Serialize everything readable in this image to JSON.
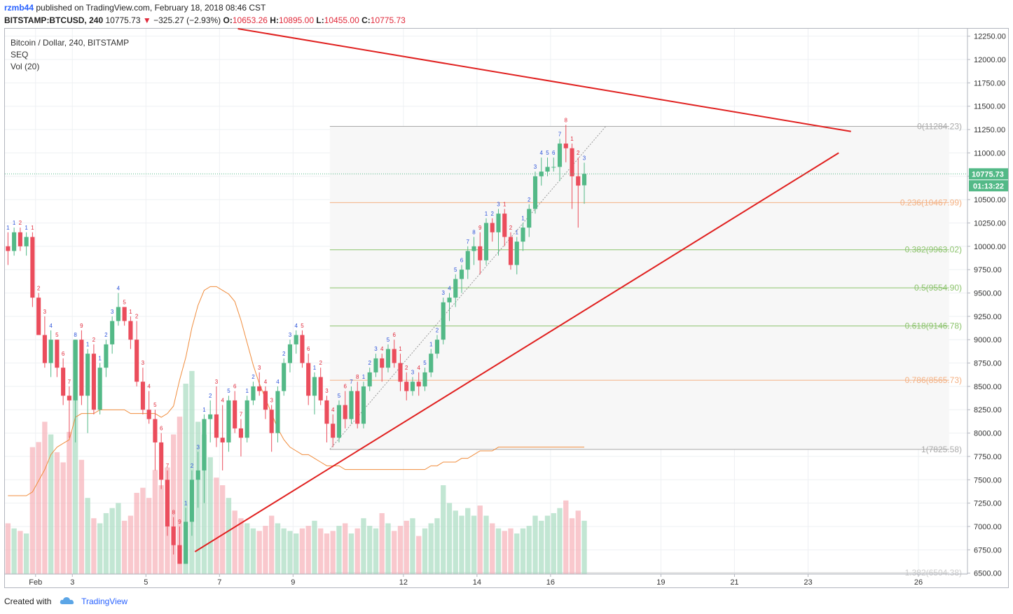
{
  "header": {
    "user": "rzmb44",
    "published": "published on TradingView.com, February 18, 2018 08:46 CST"
  },
  "symbol_line": {
    "symbol": "BITSTAMP:BTCUSD, 240",
    "last": "10775.73",
    "arrow": "▼",
    "change": "−325.27 (−2.93%)",
    "o_label": "O:",
    "o": "10653.26",
    "h_label": "H:",
    "h": "10895.00",
    "l_label": "L:",
    "l": "10455.00",
    "c_label": "C:",
    "c": "10775.73"
  },
  "legend": {
    "title": "Bitcoin / Dollar, 240, BITSTAMP",
    "seq": "SEQ",
    "vol": "Vol (20)"
  },
  "price_badge": {
    "price": "10775.73",
    "timer": "01:13:22",
    "color": "#53b987"
  },
  "footer": {
    "created": "Created with",
    "brand": "TradingView"
  },
  "colors": {
    "up": "#53b987",
    "down": "#eb4d5c",
    "trend": "#e0201f",
    "vol_ma": "#f08c3c"
  },
  "chart_data": {
    "type": "candlestick",
    "interval": "240",
    "y_axis": {
      "range": [
        6500,
        12300
      ],
      "ticks": [
        12250,
        12000,
        11750,
        11500,
        11250,
        11000,
        10750,
        10500,
        10250,
        10000,
        9750,
        9500,
        9250,
        9000,
        8750,
        8500,
        8250,
        8000,
        7750,
        7500,
        7250,
        7000,
        6750,
        6500
      ],
      "tick_labels": [
        "12250.00",
        "12000.00",
        "11750.00",
        "11500.00",
        "11250.00",
        "11000.00",
        "10750.00",
        "10500.00",
        "10250.00",
        "10000.00",
        "9750.00",
        "9500.00",
        "9250.00",
        "9000.00",
        "8750.00",
        "8500.00",
        "8250.00",
        "8000.00",
        "7750.00",
        "7500.00",
        "7250.00",
        "7000.00",
        "6750.00",
        "6500.00"
      ]
    },
    "x_axis": {
      "start": "2018-02-01T04:00",
      "end": "2018-02-27T08:00",
      "ticks": [
        {
          "t": "2018-02-02T00:00",
          "label": "Feb"
        },
        {
          "t": "2018-02-03T00:00",
          "label": "3"
        },
        {
          "t": "2018-02-05T00:00",
          "label": "5"
        },
        {
          "t": "2018-02-07T00:00",
          "label": "7"
        },
        {
          "t": "2018-02-09T00:00",
          "label": "9"
        },
        {
          "t": "2018-02-12T00:00",
          "label": "12"
        },
        {
          "t": "2018-02-14T00:00",
          "label": "14"
        },
        {
          "t": "2018-02-16T00:00",
          "label": "16"
        },
        {
          "t": "2018-02-19T00:00",
          "label": "19"
        },
        {
          "t": "2018-02-21T00:00",
          "label": "21"
        },
        {
          "t": "2018-02-23T00:00",
          "label": "23"
        },
        {
          "t": "2018-02-26T00:00",
          "label": "26"
        }
      ]
    },
    "volume_axis": {
      "range": [
        0,
        3000
      ]
    },
    "candles": [
      [
        10000,
        10150,
        9800,
        9950,
        2,
        "1",
        "g"
      ],
      [
        9950,
        10200,
        9900,
        10150,
        1.8,
        "1",
        "g"
      ],
      [
        10150,
        10200,
        9950,
        10000,
        1.7,
        "2",
        "r"
      ],
      [
        10000,
        10150,
        9900,
        10100,
        1.6,
        "1",
        "g"
      ],
      [
        10100,
        10150,
        9350,
        9450,
        5,
        "1",
        "r"
      ],
      [
        9450,
        9500,
        9050,
        9050,
        5.2,
        "2",
        "r"
      ],
      [
        9050,
        9250,
        8700,
        8750,
        6,
        "3",
        "r"
      ],
      [
        8750,
        9100,
        8600,
        9000,
        5.5,
        "4",
        "g"
      ],
      [
        9000,
        9000,
        8600,
        8700,
        4.8,
        "5",
        "r"
      ],
      [
        8700,
        8800,
        8300,
        8400,
        4.4,
        "6",
        "r"
      ],
      [
        8400,
        8500,
        7950,
        8350,
        5.6,
        "7",
        "r"
      ],
      [
        8350,
        9000,
        7900,
        9000,
        9.2,
        "8",
        "g"
      ],
      [
        9000,
        9100,
        8300,
        8400,
        4.5,
        "9",
        "r"
      ],
      [
        8400,
        8900,
        8000,
        8850,
        3,
        "1",
        "g"
      ],
      [
        8850,
        8950,
        8200,
        8250,
        2.2,
        "2",
        "r"
      ],
      [
        8250,
        8750,
        8200,
        8700,
        2,
        "1",
        "g"
      ],
      [
        8700,
        9000,
        8600,
        8950,
        2.4,
        "2",
        "g"
      ],
      [
        8950,
        9250,
        8850,
        9200,
        2.6,
        "3",
        "g"
      ],
      [
        9200,
        9500,
        9150,
        9350,
        2.8,
        "4",
        "g"
      ],
      [
        9350,
        9350,
        9150,
        9200,
        2.1,
        "5",
        "r"
      ],
      [
        9200,
        9250,
        8900,
        9000,
        2.3,
        "1",
        "r"
      ],
      [
        9000,
        9200,
        8500,
        8550,
        3.2,
        "2",
        "r"
      ],
      [
        8550,
        8700,
        8200,
        8250,
        3.4,
        "3",
        "r"
      ],
      [
        8250,
        8450,
        8100,
        8150,
        3,
        "4",
        "r"
      ],
      [
        8150,
        8250,
        7600,
        7900,
        4.1,
        "5",
        "r"
      ],
      [
        7900,
        8000,
        7400,
        7500,
        3.5,
        "6",
        "r"
      ],
      [
        7500,
        7600,
        6900,
        7000,
        4.2,
        "7",
        "r"
      ],
      [
        7000,
        7100,
        6700,
        6800,
        5.5,
        "8",
        "r"
      ],
      [
        6800,
        7000,
        6600,
        6600,
        6.2,
        "9",
        "r"
      ],
      [
        6600,
        7200,
        6600,
        7050,
        7.5,
        "1",
        "g"
      ],
      [
        7050,
        7600,
        6900,
        7500,
        8,
        "2",
        "g"
      ],
      [
        7500,
        7800,
        7200,
        7600,
        6,
        "3",
        "g"
      ],
      [
        7600,
        8200,
        7250,
        8150,
        5.5,
        "1",
        "g"
      ],
      [
        8150,
        8350,
        7900,
        8200,
        4.6,
        "2",
        "g"
      ],
      [
        8200,
        8500,
        7850,
        7950,
        3.8,
        "3",
        "r"
      ],
      [
        7950,
        8300,
        7600,
        7900,
        3.5,
        "4",
        "r"
      ],
      [
        7900,
        8400,
        7800,
        8350,
        3,
        "5",
        "g"
      ],
      [
        8350,
        8450,
        8000,
        8050,
        2.5,
        "6",
        "r"
      ],
      [
        8050,
        8150,
        7750,
        7950,
        2.2,
        "7",
        "r"
      ],
      [
        7950,
        8400,
        7900,
        8350,
        2,
        "1",
        "g"
      ],
      [
        8350,
        8550,
        8300,
        8500,
        1.8,
        "2",
        "g"
      ],
      [
        8500,
        8650,
        8400,
        8450,
        1.7,
        "3",
        "r"
      ],
      [
        8450,
        8500,
        8150,
        8250,
        1.9,
        "4",
        "r"
      ],
      [
        8250,
        8300,
        7800,
        8000,
        2.3,
        "3",
        "r"
      ],
      [
        8000,
        8500,
        7900,
        8450,
        2,
        "4",
        "g"
      ],
      [
        8450,
        8800,
        8400,
        8750,
        1.8,
        "2",
        "g"
      ],
      [
        8750,
        9000,
        8650,
        8950,
        1.7,
        "3",
        "g"
      ],
      [
        8950,
        9100,
        8850,
        9050,
        1.6,
        "4",
        "g"
      ],
      [
        9050,
        9100,
        8700,
        8750,
        1.8,
        "5",
        "r"
      ],
      [
        8750,
        8850,
        8300,
        8400,
        1.9,
        "6",
        "r"
      ],
      [
        8400,
        8650,
        8200,
        8600,
        2.1,
        "1",
        "g"
      ],
      [
        8600,
        8700,
        8300,
        8350,
        1.8,
        "2",
        "r"
      ],
      [
        8350,
        8400,
        7900,
        8100,
        1.6,
        "3",
        "r"
      ],
      [
        8100,
        8200,
        7850,
        7950,
        1.7,
        "4",
        "r"
      ],
      [
        7950,
        8350,
        7900,
        8300,
        1.9,
        "5",
        "g"
      ],
      [
        8300,
        8450,
        8050,
        8150,
        2,
        "6",
        "r"
      ],
      [
        8150,
        8500,
        8100,
        8450,
        1.6,
        "7",
        "g"
      ],
      [
        8450,
        8550,
        8050,
        8100,
        1.8,
        "8",
        "r"
      ],
      [
        8100,
        8550,
        8050,
        8500,
        2.2,
        "1",
        "g"
      ],
      [
        8500,
        8700,
        8450,
        8650,
        1.9,
        "2",
        "g"
      ],
      [
        8650,
        8850,
        8600,
        8800,
        1.8,
        "3",
        "g"
      ],
      [
        8800,
        8850,
        8550,
        8700,
        2.4,
        "4",
        "r"
      ],
      [
        8700,
        8950,
        8650,
        8900,
        2,
        "5",
        "g"
      ],
      [
        8900,
        9000,
        8700,
        8750,
        1.7,
        "6",
        "r"
      ],
      [
        8750,
        8850,
        8450,
        8550,
        1.9,
        "1",
        "r"
      ],
      [
        8550,
        8650,
        8350,
        8450,
        2.1,
        "2",
        "r"
      ],
      [
        8450,
        8600,
        8400,
        8550,
        2.2,
        "3",
        "g"
      ],
      [
        8550,
        8650,
        8400,
        8500,
        1.5,
        "4",
        "r"
      ],
      [
        8500,
        8700,
        8450,
        8650,
        1.8,
        "5",
        "g"
      ],
      [
        8650,
        8900,
        8600,
        8850,
        2,
        "1",
        "g"
      ],
      [
        8850,
        9050,
        8800,
        9000,
        2.2,
        "2",
        "g"
      ],
      [
        9000,
        9450,
        8950,
        9400,
        3.5,
        "3",
        "g"
      ],
      [
        9400,
        9500,
        9200,
        9450,
        2.8,
        "4",
        "g"
      ],
      [
        9450,
        9700,
        9350,
        9650,
        2.5,
        "5",
        "g"
      ],
      [
        9650,
        9800,
        9500,
        9750,
        2.3,
        "6",
        "g"
      ],
      [
        9750,
        10000,
        9650,
        9950,
        2.6,
        "7",
        "g"
      ],
      [
        9950,
        10100,
        9800,
        10000,
        2.3,
        "8",
        "g"
      ],
      [
        10000,
        10150,
        9700,
        9850,
        2.7,
        "9",
        "r"
      ],
      [
        9850,
        10300,
        9800,
        10250,
        2.3,
        "1",
        "g"
      ],
      [
        10250,
        10300,
        10050,
        10150,
        2,
        "2",
        "g"
      ],
      [
        10150,
        10400,
        9900,
        10350,
        1.8,
        "3",
        "g"
      ],
      [
        10350,
        10400,
        10000,
        10100,
        1.7,
        "1",
        "r"
      ],
      [
        10100,
        10150,
        9750,
        9800,
        1.8,
        "2",
        "r"
      ],
      [
        9800,
        10100,
        9700,
        10050,
        1.6,
        "1",
        "g"
      ],
      [
        10050,
        10250,
        9950,
        10200,
        1.8,
        "1",
        "g"
      ],
      [
        10200,
        10450,
        10100,
        10400,
        1.9,
        "2",
        "g"
      ],
      [
        10400,
        10800,
        10350,
        10750,
        2.3,
        "3",
        "g"
      ],
      [
        10750,
        10950,
        10650,
        10800,
        2.1,
        "4",
        "g"
      ],
      [
        10800,
        10950,
        10750,
        10850,
        2.3,
        "5",
        "g"
      ],
      [
        10850,
        10950,
        10800,
        10850,
        2.4,
        "6",
        "g"
      ],
      [
        10850,
        11150,
        10700,
        11100,
        2.6,
        "7",
        "g"
      ],
      [
        11100,
        11300,
        10900,
        11050,
        2.9,
        "8",
        "r"
      ],
      [
        11050,
        11100,
        10400,
        10750,
        2.2,
        "1",
        "r"
      ],
      [
        10750,
        10950,
        10200,
        10650,
        2.5,
        "2",
        "r"
      ],
      [
        10653,
        10895,
        10455,
        10776,
        2.1,
        "3",
        "g"
      ]
    ],
    "volume_ma": [
      1050,
      1050,
      1050,
      1050,
      1100,
      1250,
      1400,
      1600,
      1700,
      1750,
      1800,
      2100,
      2150,
      2150,
      2150,
      2200,
      2200,
      2200,
      2200,
      2200,
      2150,
      2150,
      2150,
      2150,
      2150,
      2100,
      2150,
      2250,
      2600,
      2900,
      3300,
      3600,
      3800,
      3850,
      3850,
      3800,
      3750,
      3650,
      3400,
      3100,
      2800,
      2550,
      2350,
      2150,
      1950,
      1800,
      1700,
      1650,
      1600,
      1600,
      1550,
      1500,
      1450,
      1450,
      1450,
      1400,
      1400,
      1400,
      1400,
      1400,
      1400,
      1400,
      1400,
      1400,
      1400,
      1400,
      1400,
      1400,
      1400,
      1450,
      1450,
      1500,
      1500,
      1500,
      1550,
      1550,
      1600,
      1650,
      1650,
      1650,
      1700,
      1700,
      1700,
      1700,
      1700,
      1700,
      1700,
      1700,
      1700,
      1700,
      1700,
      1700,
      1700,
      1700,
      1700
    ],
    "fibonacci": [
      {
        "level": "0",
        "price": 11284.23,
        "label": "0(11284.23)",
        "color": "#aaaaaa"
      },
      {
        "level": "0.236",
        "price": 10467.99,
        "label": "0.236(10467.99)",
        "color": "#f4b183"
      },
      {
        "level": "0.382",
        "price": 9963.02,
        "label": "0.382(9963.02)",
        "color": "#8cc36d"
      },
      {
        "level": "0.5",
        "price": 9554.9,
        "label": "0.5(9554.90)",
        "color": "#8cc36d"
      },
      {
        "level": "0.618",
        "price": 9146.78,
        "label": "0.618(9146.78)",
        "color": "#8cc36d"
      },
      {
        "level": "0.786",
        "price": 8565.73,
        "label": "0.786(8565.73)",
        "color": "#f4b183"
      },
      {
        "level": "1",
        "price": 7825.58,
        "label": "1(7825.58)",
        "color": "#aaaaaa"
      },
      {
        "level": "1.382",
        "price": 6504.38,
        "label": "1.382(6504.38)",
        "color": "#cccccc"
      }
    ],
    "trendlines": [
      {
        "name": "upper",
        "from": {
          "t": "2018-02-07T12:00",
          "p": 12330
        },
        "to": {
          "t": "2018-02-24T04:00",
          "p": 11230
        }
      },
      {
        "name": "lower",
        "from": {
          "t": "2018-02-06T08:00",
          "p": 6730
        },
        "to": {
          "t": "2018-02-23T20:00",
          "p": 11000
        }
      }
    ],
    "fib_range": {
      "from_t": "2018-02-10T00:00",
      "to_t": "2018-02-26T20:00",
      "diag_from": {
        "t": "2018-02-10T00:00",
        "p": 7825.58
      },
      "diag_to": {
        "t": "2018-02-17T12:00",
        "p": 11284.23
      }
    },
    "last_price": 10775.73
  }
}
